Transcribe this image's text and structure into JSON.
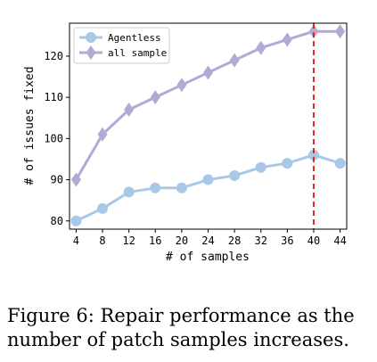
{
  "chart_data": {
    "type": "line",
    "xlabel": "# of samples",
    "ylabel": "# of issues fixed",
    "x": [
      4,
      8,
      12,
      16,
      20,
      24,
      28,
      32,
      36,
      40,
      44
    ],
    "xlim": [
      3,
      45
    ],
    "ylim": [
      78,
      128
    ],
    "yticks": [
      80,
      90,
      100,
      110,
      120
    ],
    "grid": false,
    "legend": "top-left",
    "series": [
      {
        "name": "Agentless",
        "marker": "circle",
        "color": "#a8c8e8",
        "values": [
          80,
          83,
          87,
          88,
          88,
          90,
          91,
          93,
          94,
          96,
          94
        ]
      },
      {
        "name": "all sample",
        "marker": "diamond",
        "color": "#b4a8d4",
        "values": [
          90,
          101,
          107,
          110,
          113,
          116,
          119,
          122,
          124,
          126,
          126
        ]
      }
    ],
    "vline": {
      "x": 40,
      "color": "#e0282a",
      "style": "dashed"
    }
  },
  "caption": {
    "line1": "Figure 6: Repair performance as the",
    "line2": "number of patch samples increases."
  }
}
